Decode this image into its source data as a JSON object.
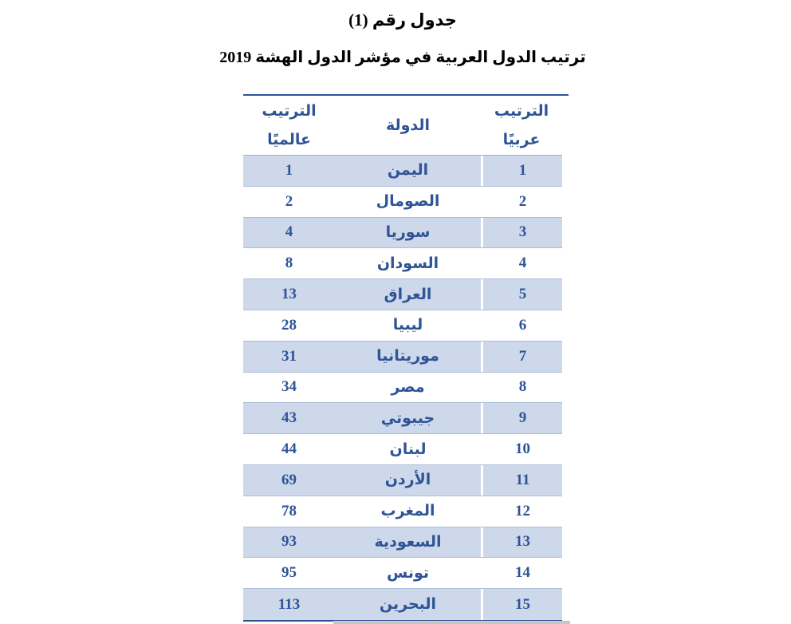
{
  "page": {
    "title": "جدول رقم (1)",
    "subtitle": "ترتيب الدول العربية في مؤشر الدول الهشة 2019"
  },
  "table": {
    "columns": {
      "arab_rank_line1": "الترتيب",
      "arab_rank_line2": "عربيًا",
      "country": "الدولة",
      "world_rank_line1": "الترتيب",
      "world_rank_line2": "عالميًا"
    },
    "rows": [
      {
        "arab_rank": "1",
        "country": "اليمن",
        "world_rank": "1"
      },
      {
        "arab_rank": "2",
        "country": "الصومال",
        "world_rank": "2"
      },
      {
        "arab_rank": "3",
        "country": "سوريا",
        "world_rank": "4"
      },
      {
        "arab_rank": "4",
        "country": "السودان",
        "world_rank": "8"
      },
      {
        "arab_rank": "5",
        "country": "العراق",
        "world_rank": "13"
      },
      {
        "arab_rank": "6",
        "country": "ليبيا",
        "world_rank": "28"
      },
      {
        "arab_rank": "7",
        "country": "موريتانيا",
        "world_rank": "31"
      },
      {
        "arab_rank": "8",
        "country": "مصر",
        "world_rank": "34"
      },
      {
        "arab_rank": "9",
        "country": "جيبوتي",
        "world_rank": "43"
      },
      {
        "arab_rank": "10",
        "country": "لبنان",
        "world_rank": "44"
      },
      {
        "arab_rank": "11",
        "country": "الأردن",
        "world_rank": "69"
      },
      {
        "arab_rank": "12",
        "country": "المغرب",
        "world_rank": "78"
      },
      {
        "arab_rank": "13",
        "country": "السعودية",
        "world_rank": "93"
      },
      {
        "arab_rank": "14",
        "country": "تونس",
        "world_rank": "95"
      },
      {
        "arab_rank": "15",
        "country": "البحرين",
        "world_rank": "113"
      }
    ],
    "colors": {
      "accent_blue": "#2f5496",
      "row_shade": "#cdd8ea",
      "light_grid": "#aebfda"
    }
  }
}
